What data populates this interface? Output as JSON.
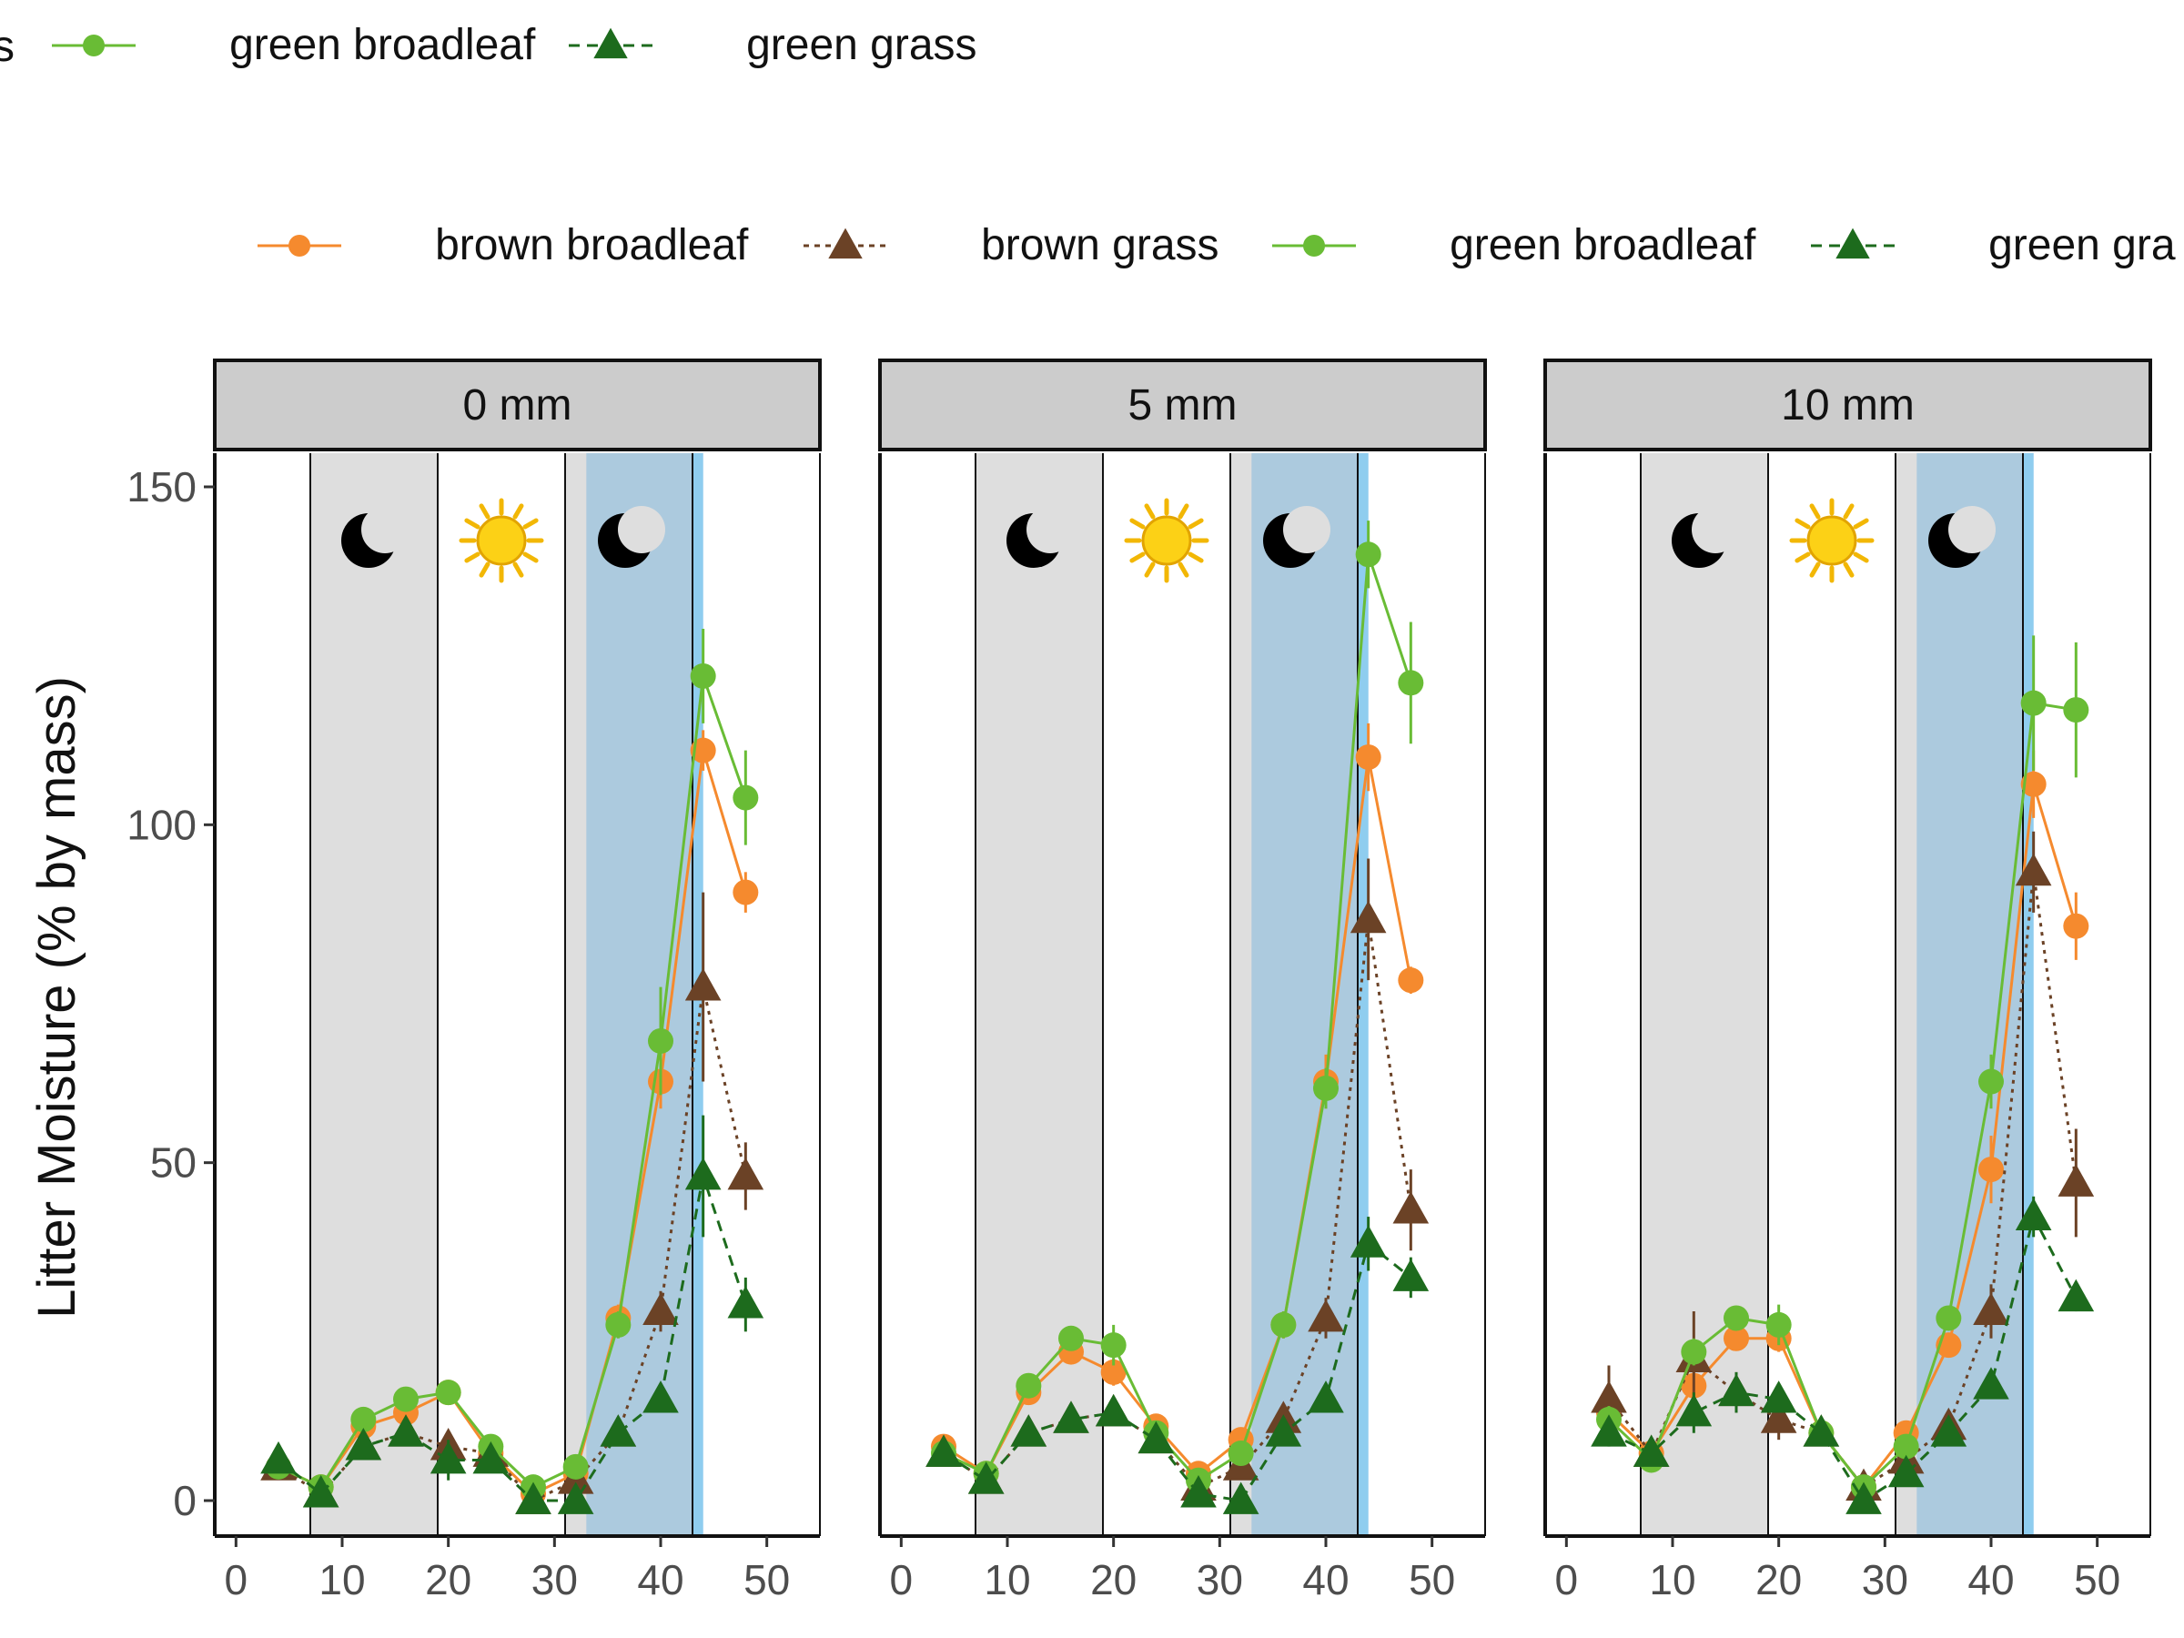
{
  "legend": {
    "items": [
      {
        "label": "brown broadleaf",
        "color": "#f58a2e",
        "marker": "circle",
        "line": "solid"
      },
      {
        "label": "brown grass",
        "color": "#6b4226",
        "marker": "triangle",
        "line": "dashed"
      },
      {
        "label": "green broadleaf",
        "color": "#69bc35",
        "marker": "circle",
        "line": "solid"
      },
      {
        "label": "green grass",
        "color": "#1d6b1d",
        "marker": "triangle",
        "line": "dashed"
      }
    ],
    "top_row_partial_text": [
      "s",
      "green broadleaf",
      "green grass"
    ],
    "main_row_partial_last": "green gra"
  },
  "icons": [
    "moon-icon",
    "sun-icon",
    "moon-icon"
  ],
  "chart_data": {
    "type": "line",
    "ylabel": "Litter Moisture (% by mass)",
    "xlabel": "",
    "xlim": [
      -2,
      55
    ],
    "ylim": [
      -5,
      155
    ],
    "xticks": [
      "0",
      "10",
      "20",
      "30",
      "40",
      "50"
    ],
    "yticks": [
      "0",
      "50",
      "100",
      "150"
    ],
    "grid": false,
    "legend_position": "top",
    "shading": {
      "gray_bands": [
        [
          7,
          19
        ],
        [
          31,
          43
        ]
      ],
      "blue_band": [
        33,
        44
      ],
      "vlines": [
        7,
        19,
        31,
        43
      ]
    },
    "panels": [
      {
        "title": "0 mm",
        "series": [
          {
            "name": "brown broadleaf",
            "x": [
              4,
              8,
              12,
              16,
              20,
              24,
              28,
              32,
              36,
              40,
              44,
              48
            ],
            "y": [
              5,
              2,
              11,
              13,
              16,
              7,
              1,
              4,
              27,
              62,
              111,
              90
            ],
            "err": [
              1,
              1,
              1,
              1,
              1,
              1,
              1,
              1,
              2,
              4,
              3,
              3
            ]
          },
          {
            "name": "brown grass",
            "x": [
              4,
              8,
              12,
              16,
              20,
              24,
              28,
              32,
              36,
              40,
              44,
              48
            ],
            "y": [
              5,
              1,
              8,
              10,
              8,
              7,
              0,
              3,
              10,
              28,
              76,
              48
            ],
            "err": [
              1,
              1,
              1,
              1,
              1,
              1,
              1,
              1,
              1,
              3,
              14,
              5
            ]
          },
          {
            "name": "green broadleaf",
            "x": [
              4,
              8,
              12,
              16,
              20,
              24,
              28,
              32,
              36,
              40,
              44,
              48
            ],
            "y": [
              5,
              2,
              12,
              15,
              16,
              8,
              2,
              5,
              26,
              68,
              122,
              104
            ],
            "err": [
              1,
              1,
              1,
              1,
              1,
              1,
              1,
              1,
              2,
              8,
              7,
              7
            ]
          },
          {
            "name": "green grass",
            "x": [
              4,
              8,
              12,
              16,
              20,
              24,
              28,
              32,
              36,
              40,
              44,
              48
            ],
            "y": [
              6,
              1,
              8,
              10,
              6,
              6,
              0,
              0,
              10,
              15,
              48,
              29
            ],
            "err": [
              1,
              1,
              1,
              1,
              3,
              1,
              1,
              1,
              1,
              1,
              9,
              4
            ]
          }
        ]
      },
      {
        "title": "5 mm",
        "series": [
          {
            "name": "brown broadleaf",
            "x": [
              4,
              8,
              12,
              16,
              20,
              24,
              28,
              32,
              36,
              40,
              44,
              48
            ],
            "y": [
              8,
              4,
              16,
              22,
              19,
              11,
              4,
              9,
              26,
              62,
              110,
              77
            ],
            "err": [
              1,
              1,
              1,
              1,
              2,
              1,
              1,
              1,
              2,
              4,
              5,
              2
            ]
          },
          {
            "name": "brown grass",
            "x": [
              4,
              8,
              12,
              16,
              20,
              24,
              28,
              32,
              36,
              40,
              44,
              48
            ],
            "y": [
              7,
              3,
              10,
              12,
              13,
              9,
              2,
              5,
              12,
              27,
              86,
              43
            ],
            "err": [
              1,
              1,
              1,
              1,
              1,
              1,
              1,
              1,
              1,
              3,
              9,
              6
            ]
          },
          {
            "name": "green broadleaf",
            "x": [
              4,
              8,
              12,
              16,
              20,
              24,
              28,
              32,
              36,
              40,
              44,
              48
            ],
            "y": [
              7,
              4,
              17,
              24,
              23,
              10,
              3,
              7,
              26,
              61,
              140,
              121
            ],
            "err": [
              1,
              1,
              1,
              1,
              3,
              1,
              1,
              1,
              2,
              3,
              5,
              9
            ]
          },
          {
            "name": "green grass",
            "x": [
              4,
              8,
              12,
              16,
              20,
              24,
              28,
              32,
              36,
              40,
              44,
              48
            ],
            "y": [
              7,
              3,
              10,
              12,
              13,
              9,
              1,
              0,
              10,
              15,
              38,
              33
            ],
            "err": [
              1,
              1,
              1,
              1,
              1,
              1,
              1,
              1,
              1,
              1,
              4,
              3
            ]
          }
        ]
      },
      {
        "title": "10 mm",
        "series": [
          {
            "name": "brown broadleaf",
            "x": [
              4,
              8,
              12,
              16,
              20,
              24,
              28,
              32,
              36,
              40,
              44,
              48
            ],
            "y": [
              13,
              7,
              17,
              24,
              24,
              10,
              2,
              10,
              23,
              49,
              106,
              85
            ],
            "err": [
              3,
              1,
              2,
              1,
              2,
              1,
              1,
              1,
              1,
              5,
              5,
              5
            ]
          },
          {
            "name": "brown grass",
            "x": [
              4,
              8,
              12,
              16,
              20,
              24,
              28,
              32,
              36,
              40,
              44,
              48
            ],
            "y": [
              15,
              7,
              21,
              16,
              12,
              10,
              2,
              6,
              11,
              28,
              93,
              47
            ],
            "err": [
              5,
              1,
              7,
              3,
              3,
              1,
              1,
              1,
              1,
              4,
              6,
              8
            ]
          },
          {
            "name": "green broadleaf",
            "x": [
              4,
              8,
              12,
              16,
              20,
              24,
              28,
              32,
              36,
              40,
              44,
              48
            ],
            "y": [
              12,
              6,
              22,
              27,
              26,
              10,
              2,
              8,
              27,
              62,
              118,
              117
            ],
            "err": [
              2,
              1,
              2,
              1,
              3,
              1,
              1,
              1,
              1,
              4,
              10,
              10
            ]
          },
          {
            "name": "green grass",
            "x": [
              4,
              8,
              12,
              16,
              20,
              24,
              28,
              32,
              36,
              40,
              44,
              48
            ],
            "y": [
              10,
              7,
              13,
              16,
              15,
              10,
              0,
              4,
              10,
              17,
              42,
              30
            ],
            "err": [
              2,
              1,
              3,
              3,
              2,
              1,
              1,
              1,
              1,
              1,
              3,
              2
            ]
          }
        ]
      }
    ]
  }
}
